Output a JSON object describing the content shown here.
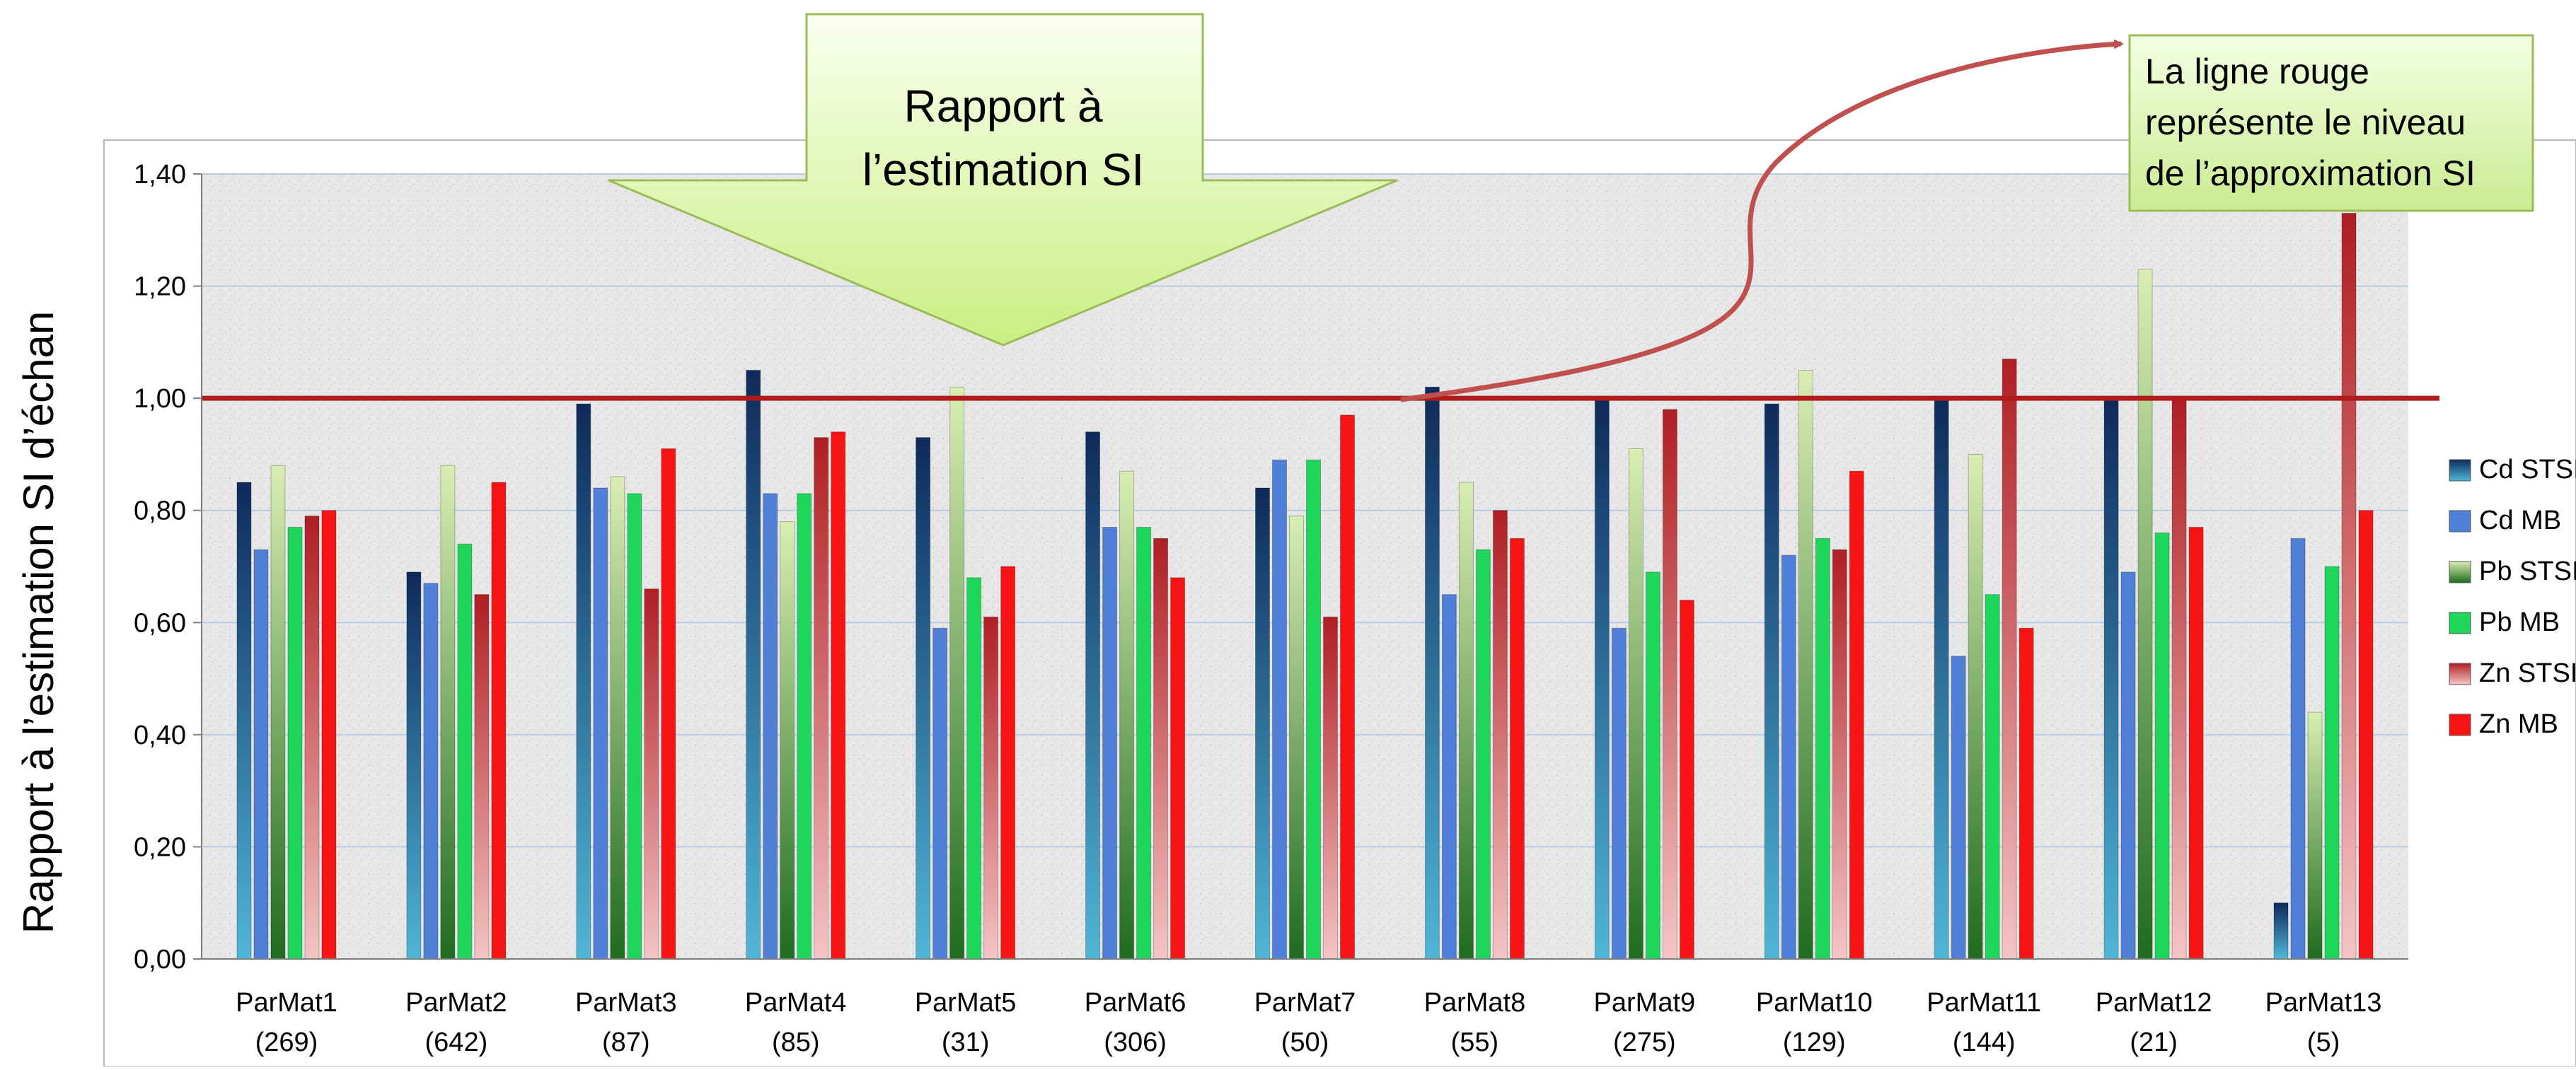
{
  "chart_data": {
    "type": "bar",
    "title": "",
    "ylabel": "Rapport à l’estimation SI d’échan",
    "xlabel": "",
    "ylim": [
      0,
      1.4
    ],
    "yticks": [
      "0,00",
      "0,20",
      "0,40",
      "0,60",
      "0,80",
      "1,00",
      "1,20",
      "1,40"
    ],
    "ytick_values": [
      0,
      0.2,
      0.4,
      0.6,
      0.8,
      1.0,
      1.2,
      1.4
    ],
    "grid": true,
    "legend_position": "right",
    "categories": [
      "ParMat1",
      "ParMat2",
      "ParMat3",
      "ParMat4",
      "ParMat5",
      "ParMat6",
      "ParMat7",
      "ParMat8",
      "ParMat9",
      "ParMat10",
      "ParMat11",
      "ParMat12",
      "ParMat13"
    ],
    "category_counts": [
      "(269)",
      "(642)",
      "(87)",
      "(85)",
      "(31)",
      "(306)",
      "(50)",
      "(55)",
      "(275)",
      "(129)",
      "(144)",
      "(21)",
      "(5)"
    ],
    "series": [
      {
        "name": "Cd STSI",
        "color_top": "#0e2a5c",
        "color_bottom": "#4fb6d8",
        "values": [
          0.85,
          0.69,
          0.99,
          1.05,
          0.93,
          0.94,
          0.84,
          1.02,
          1.0,
          0.99,
          1.0,
          1.0,
          0.1
        ]
      },
      {
        "name": "Cd MB",
        "color_top": "#4f7fd6",
        "color_bottom": "#4f7fd6",
        "values": [
          0.73,
          0.67,
          0.84,
          0.83,
          0.59,
          0.77,
          0.89,
          0.65,
          0.59,
          0.72,
          0.54,
          0.69,
          0.75
        ]
      },
      {
        "name": "Pb STSI",
        "color_top": "#d9eeb2",
        "color_bottom": "#1f6b1f",
        "values": [
          0.88,
          0.88,
          0.86,
          0.78,
          1.02,
          0.87,
          0.79,
          0.85,
          0.91,
          1.05,
          0.9,
          1.23,
          0.44
        ]
      },
      {
        "name": "Pb MB",
        "color_top": "#1ed65a",
        "color_bottom": "#1ed65a",
        "values": [
          0.77,
          0.74,
          0.83,
          0.83,
          0.68,
          0.77,
          0.89,
          0.73,
          0.69,
          0.75,
          0.65,
          0.76,
          0.7
        ]
      },
      {
        "name": "Zn STSI",
        "color_top": "#b01e22",
        "color_bottom": "#f4c4c4",
        "values": [
          0.79,
          0.65,
          0.66,
          0.93,
          0.61,
          0.75,
          0.61,
          0.8,
          0.98,
          0.73,
          1.07,
          1.0,
          1.33
        ]
      },
      {
        "name": "Zn MB",
        "color_top": "#f81414",
        "color_bottom": "#f81414",
        "values": [
          0.8,
          0.85,
          0.91,
          0.94,
          0.7,
          0.68,
          0.97,
          0.75,
          0.64,
          0.87,
          0.59,
          0.77,
          0.8
        ]
      }
    ],
    "reference_line": {
      "value": 1.0,
      "color": "#b01c1c"
    },
    "annotations": {
      "arrow_label": [
        "Rapport à",
        "l’estimation SI"
      ],
      "callout_label": [
        "La ligne rouge",
        "représente le niveau",
        "de l’approximation SI"
      ]
    }
  }
}
